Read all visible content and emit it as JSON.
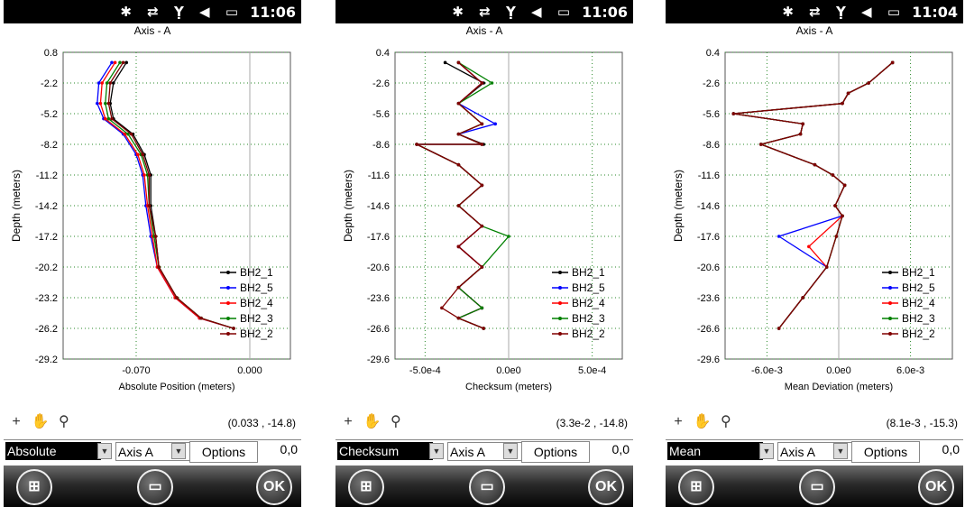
{
  "status_bar": {
    "icons": "✱ ⇄ Ỵ ◀ ▭"
  },
  "screens": [
    {
      "time": "11:06",
      "title": "Axis - A",
      "mode_select": "Absolute",
      "axis_select": "Axis A",
      "options_label": "Options",
      "options_value": "0,0",
      "coord_readout": "(0.033 , -14.8)",
      "ok_label": "OK",
      "chart_data": {
        "type": "line",
        "ylabel": "Depth (meters)",
        "xlabel": "Absolute Position (meters)",
        "ylim": [
          -29.2,
          0.8
        ],
        "yticks": [
          "0.8",
          "-2.2",
          "-5.2",
          "-8.2",
          "-11.2",
          "-14.2",
          "-17.2",
          "-20.2",
          "-23.2",
          "-26.2",
          "-29.2"
        ],
        "xticks": [
          "-0.070",
          "0.000"
        ],
        "xlim": [
          -0.115,
          0.025
        ],
        "legend": [
          "BH2_1",
          "BH2_5",
          "BH2_4",
          "BH2_3",
          "BH2_2"
        ],
        "series": [
          {
            "name": "BH2_1",
            "color": "#000000",
            "x": [
              -0.076,
              -0.084,
              -0.086,
              -0.084,
              -0.072,
              -0.065,
              -0.061,
              -0.061,
              -0.058,
              -0.056,
              -0.045,
              -0.03,
              -0.01
            ],
            "y": [
              -0.2,
              -2.2,
              -4.2,
              -5.7,
              -7.2,
              -9.2,
              -11.2,
              -14.2,
              -17.2,
              -20.2,
              -23.2,
              -25.2,
              -26.2
            ]
          },
          {
            "name": "BH2_5",
            "color": "#0000ff",
            "x": [
              -0.085,
              -0.093,
              -0.094,
              -0.09,
              -0.078,
              -0.07,
              -0.066,
              -0.064,
              -0.061,
              -0.057,
              -0.046,
              -0.031,
              -0.01
            ],
            "y": [
              -0.2,
              -2.2,
              -4.2,
              -5.7,
              -7.2,
              -9.2,
              -11.2,
              -14.2,
              -17.2,
              -20.2,
              -23.2,
              -25.2,
              -26.2
            ]
          },
          {
            "name": "BH2_4",
            "color": "#ff0000",
            "x": [
              -0.083,
              -0.091,
              -0.092,
              -0.089,
              -0.077,
              -0.069,
              -0.065,
              -0.063,
              -0.06,
              -0.057,
              -0.046,
              -0.031,
              -0.01
            ],
            "y": [
              -0.2,
              -2.2,
              -4.2,
              -5.7,
              -7.2,
              -9.2,
              -11.2,
              -14.2,
              -17.2,
              -20.2,
              -23.2,
              -25.2,
              -26.2
            ]
          },
          {
            "name": "BH2_3",
            "color": "#008000",
            "x": [
              -0.08,
              -0.088,
              -0.089,
              -0.087,
              -0.075,
              -0.067,
              -0.063,
              -0.062,
              -0.059,
              -0.056,
              -0.045,
              -0.03,
              -0.01
            ],
            "y": [
              -0.2,
              -2.2,
              -4.2,
              -5.7,
              -7.2,
              -9.2,
              -11.2,
              -14.2,
              -17.2,
              -20.2,
              -23.2,
              -25.2,
              -26.2
            ]
          },
          {
            "name": "BH2_2",
            "color": "#800000",
            "x": [
              -0.078,
              -0.086,
              -0.087,
              -0.085,
              -0.073,
              -0.066,
              -0.062,
              -0.062,
              -0.058,
              -0.056,
              -0.045,
              -0.03,
              -0.01
            ],
            "y": [
              -0.2,
              -2.2,
              -4.2,
              -5.7,
              -7.2,
              -9.2,
              -11.2,
              -14.2,
              -17.2,
              -20.2,
              -23.2,
              -25.2,
              -26.2
            ]
          }
        ]
      }
    },
    {
      "time": "11:06",
      "title": "Axis - A",
      "mode_select": "Checksum",
      "axis_select": "Axis A",
      "options_label": "Options",
      "options_value": "0,0",
      "coord_readout": "(3.3e-2 , -14.8)",
      "ok_label": "OK",
      "chart_data": {
        "type": "line",
        "ylabel": "Depth (meters)",
        "xlabel": "Checksum (meters)",
        "ylim": [
          -29.6,
          0.4
        ],
        "yticks": [
          "0.4",
          "-2.6",
          "-5.6",
          "-8.6",
          "-11.6",
          "-14.6",
          "-17.6",
          "-20.6",
          "-23.6",
          "-26.6",
          "-29.6"
        ],
        "xticks": [
          "-5.0e-4",
          "0.0e0",
          "5.0e-4"
        ],
        "xlim": [
          -0.00068,
          0.00068
        ],
        "legend": [
          "BH2_1",
          "BH2_5",
          "BH2_4",
          "BH2_3",
          "BH2_2"
        ],
        "series": [
          {
            "name": "BH2_1",
            "color": "#000000",
            "x": [
              -0.00038,
              -0.00015,
              -0.0003,
              -0.00016,
              -0.0003,
              -0.00015,
              -0.00055,
              -0.0003,
              -0.00016,
              -0.0003,
              -0.00016,
              -0.0003,
              -0.00016,
              -0.0003,
              -0.00016,
              -0.0003,
              -0.00015
            ],
            "y": [
              -0.6,
              -2.6,
              -4.6,
              -6.6,
              -7.6,
              -8.6,
              -8.6,
              -10.6,
              -12.6,
              -14.6,
              -16.6,
              -18.6,
              -20.6,
              -22.6,
              -24.6,
              -25.6,
              -26.6
            ]
          },
          {
            "name": "BH2_5",
            "color": "#0000ff",
            "x": [
              -0.0003,
              -0.00016,
              -0.0003,
              -8e-05,
              -0.0003,
              -0.00016,
              -0.00055,
              -0.0003,
              -0.00016,
              -0.0003,
              -0.00016,
              -0.0003,
              -0.00016,
              -0.0003,
              -0.00016,
              -0.0003,
              -0.00015
            ],
            "y": [
              -0.6,
              -2.6,
              -4.6,
              -6.6,
              -7.6,
              -8.6,
              -8.6,
              -10.6,
              -12.6,
              -14.6,
              -16.6,
              -18.6,
              -20.6,
              -22.6,
              -24.6,
              -25.6,
              -26.6
            ]
          },
          {
            "name": "BH2_4",
            "color": "#ff0000",
            "x": [
              -0.0003,
              -0.00016,
              -0.0003,
              -0.00016,
              -0.0003,
              -0.00016,
              -0.00055,
              -0.0003,
              -0.00016,
              -0.0003,
              -0.00016,
              -0.0003,
              -0.00016,
              -0.0003,
              -0.00016,
              -0.0003,
              -0.00015
            ],
            "y": [
              -0.6,
              -2.6,
              -4.6,
              -6.6,
              -7.6,
              -8.6,
              -8.6,
              -10.6,
              -12.6,
              -14.6,
              -16.6,
              -18.6,
              -20.6,
              -22.6,
              -24.6,
              -25.6,
              -26.6
            ]
          },
          {
            "name": "BH2_3",
            "color": "#008000",
            "x": [
              -0.0003,
              -0.0001,
              -0.0003,
              -0.00016,
              -0.0003,
              -0.00016,
              -0.00055,
              -0.0003,
              -0.00016,
              -0.0003,
              -0.00016,
              0.0,
              -0.00016,
              -0.0003,
              -0.00016,
              -0.0003,
              -0.00015
            ],
            "y": [
              -0.6,
              -2.6,
              -4.6,
              -6.6,
              -7.6,
              -8.6,
              -8.6,
              -10.6,
              -12.6,
              -14.6,
              -16.6,
              -17.6,
              -20.6,
              -22.6,
              -24.6,
              -25.6,
              -26.6
            ]
          },
          {
            "name": "BH2_2",
            "color": "#800000",
            "x": [
              -0.0003,
              -0.00016,
              -0.0003,
              -0.00016,
              -0.0003,
              -0.00016,
              -0.00055,
              -0.0003,
              -0.00016,
              -0.0003,
              -0.00016,
              -0.0003,
              -0.00016,
              -0.0003,
              -0.0004,
              -0.0003,
              -0.00015
            ],
            "y": [
              -0.6,
              -2.6,
              -4.6,
              -6.6,
              -7.6,
              -8.6,
              -8.6,
              -10.6,
              -12.6,
              -14.6,
              -16.6,
              -18.6,
              -20.6,
              -22.6,
              -24.6,
              -25.6,
              -26.6
            ]
          }
        ]
      }
    },
    {
      "time": "11:04",
      "title": "Axis - A",
      "mode_select": "Mean",
      "axis_select": "Axis A",
      "options_label": "Options",
      "options_value": "0,0",
      "coord_readout": "(8.1e-3 , -15.3)",
      "ok_label": "OK",
      "chart_data": {
        "type": "line",
        "ylabel": "Depth (meters)",
        "xlabel": "Mean Deviation (meters)",
        "ylim": [
          -29.6,
          0.4
        ],
        "yticks": [
          "0.4",
          "-2.6",
          "-5.6",
          "-8.6",
          "-11.6",
          "-14.6",
          "-17.6",
          "-20.6",
          "-23.6",
          "-26.6",
          "-29.6"
        ],
        "xticks": [
          "-6.0e-3",
          "0.0e0",
          "6.0e-3"
        ],
        "xlim": [
          -0.0095,
          0.0095
        ],
        "legend": [
          "BH2_1",
          "BH2_5",
          "BH2_4",
          "BH2_3",
          "BH2_2"
        ],
        "series": [
          {
            "name": "BH2_1",
            "color": "#000000",
            "x": [
              0.0045,
              0.0025,
              0.0008,
              0.0003,
              -0.0088,
              -0.003,
              -0.0032,
              -0.0065,
              -0.002,
              -0.0005,
              0.0005,
              -0.0003,
              0.0003,
              -0.0002,
              -0.001,
              -0.003,
              -0.005
            ],
            "y": [
              -0.6,
              -2.6,
              -3.6,
              -4.6,
              -5.6,
              -6.6,
              -7.6,
              -8.6,
              -10.6,
              -11.6,
              -12.6,
              -14.6,
              -15.6,
              -17.6,
              -20.6,
              -23.6,
              -26.6
            ]
          },
          {
            "name": "BH2_5",
            "color": "#0000ff",
            "x": [
              0.0045,
              0.0025,
              0.0008,
              0.0003,
              -0.0088,
              -0.003,
              -0.0032,
              -0.0065,
              -0.002,
              -0.0005,
              0.0005,
              -0.0003,
              0.0003,
              -0.005,
              -0.001,
              -0.003,
              -0.005
            ],
            "y": [
              -0.6,
              -2.6,
              -3.6,
              -4.6,
              -5.6,
              -6.6,
              -7.6,
              -8.6,
              -10.6,
              -11.6,
              -12.6,
              -14.6,
              -15.6,
              -17.6,
              -20.6,
              -23.6,
              -26.6
            ]
          },
          {
            "name": "BH2_4",
            "color": "#ff0000",
            "x": [
              0.0045,
              0.0025,
              0.0008,
              0.0003,
              -0.0088,
              -0.003,
              -0.0032,
              -0.0065,
              -0.002,
              -0.0005,
              0.0005,
              -0.0003,
              0.0003,
              -0.0025,
              -0.001,
              -0.003,
              -0.005
            ],
            "y": [
              -0.6,
              -2.6,
              -3.6,
              -4.6,
              -5.6,
              -6.6,
              -7.6,
              -8.6,
              -10.6,
              -11.6,
              -12.6,
              -14.6,
              -15.6,
              -18.6,
              -20.6,
              -23.6,
              -26.6
            ]
          },
          {
            "name": "BH2_3",
            "color": "#008000",
            "x": [
              0.0045,
              0.0025,
              0.0008,
              0.0003,
              -0.0088,
              -0.003,
              -0.0032,
              -0.0065,
              -0.002,
              -0.0005,
              0.0005,
              -0.0003,
              0.0003,
              -0.0002,
              -0.001,
              -0.003,
              -0.005
            ],
            "y": [
              -0.6,
              -2.6,
              -3.6,
              -4.6,
              -5.6,
              -6.6,
              -7.6,
              -8.6,
              -10.6,
              -11.6,
              -12.6,
              -14.6,
              -15.6,
              -17.6,
              -20.6,
              -23.6,
              -26.6
            ]
          },
          {
            "name": "BH2_2",
            "color": "#800000",
            "x": [
              0.0045,
              0.0025,
              0.0008,
              0.0003,
              -0.0088,
              -0.003,
              -0.0032,
              -0.0065,
              -0.002,
              -0.0005,
              0.0005,
              -0.0003,
              0.0003,
              -0.0002,
              -0.001,
              -0.003,
              -0.005
            ],
            "y": [
              -0.6,
              -2.6,
              -3.6,
              -4.6,
              -5.6,
              -6.6,
              -7.6,
              -8.6,
              -10.6,
              -11.6,
              -12.6,
              -14.6,
              -15.6,
              -17.6,
              -20.6,
              -23.6,
              -26.6
            ]
          }
        ]
      }
    }
  ]
}
